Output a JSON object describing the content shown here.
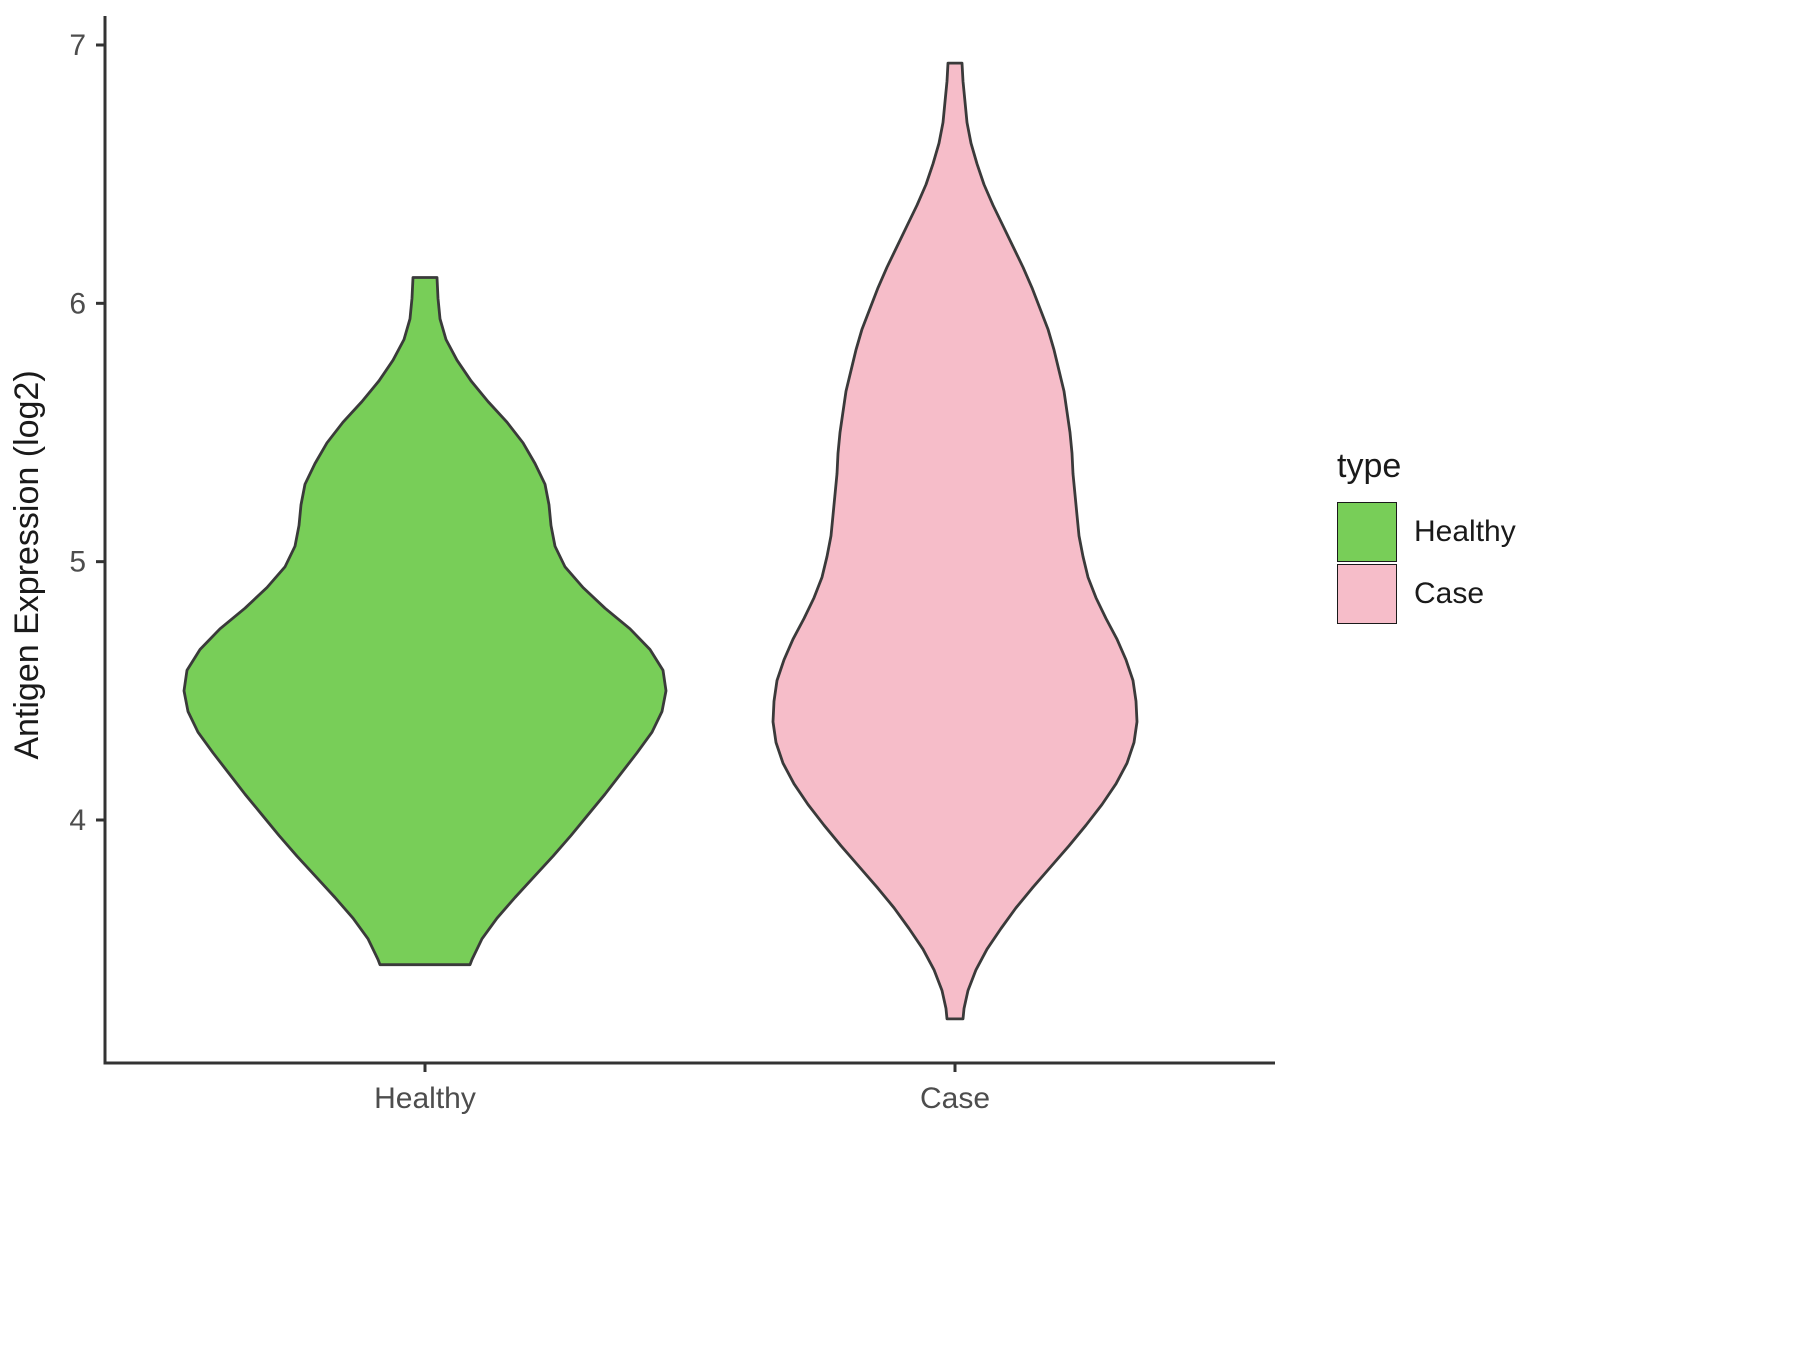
{
  "chart_data": {
    "type": "violin",
    "title": "",
    "ylabel": "Antigen Expression (log2)",
    "xlabel": "",
    "categories": [
      "Healthy",
      "Case"
    ],
    "yticks": [
      7,
      6,
      5,
      4
    ],
    "ylim": [
      3.06,
      7.1
    ],
    "grid": false,
    "legend_position": "right",
    "legend": {
      "title": "type",
      "entries": [
        {
          "label": "Healthy",
          "color": "#78CE58"
        },
        {
          "label": "Case",
          "color": "#F6BDC9"
        }
      ]
    },
    "outline_color": "#3A3A3A",
    "axis_color": "#333333",
    "tick_label_color": "#4d4d4d",
    "series": [
      {
        "name": "Healthy",
        "color": "#78CE58",
        "profile": [
          [
            6.1,
            12
          ],
          [
            6.02,
            13
          ],
          [
            5.94,
            15
          ],
          [
            5.86,
            21
          ],
          [
            5.78,
            32
          ],
          [
            5.7,
            46
          ],
          [
            5.62,
            63
          ],
          [
            5.54,
            82
          ],
          [
            5.46,
            98
          ],
          [
            5.38,
            110
          ],
          [
            5.3,
            120
          ],
          [
            5.22,
            124
          ],
          [
            5.14,
            126
          ],
          [
            5.06,
            130
          ],
          [
            4.98,
            140
          ],
          [
            4.9,
            158
          ],
          [
            4.82,
            180
          ],
          [
            4.74,
            205
          ],
          [
            4.66,
            225
          ],
          [
            4.58,
            238
          ],
          [
            4.5,
            241
          ],
          [
            4.42,
            237
          ],
          [
            4.34,
            227
          ],
          [
            4.26,
            212
          ],
          [
            4.18,
            196
          ],
          [
            4.1,
            180
          ],
          [
            4.02,
            163
          ],
          [
            3.94,
            146
          ],
          [
            3.86,
            128
          ],
          [
            3.78,
            109
          ],
          [
            3.7,
            90
          ],
          [
            3.62,
            72
          ],
          [
            3.54,
            57
          ],
          [
            3.46,
            47
          ],
          [
            3.44,
            45
          ]
        ]
      },
      {
        "name": "Case",
        "color": "#F6BDC9",
        "profile": [
          [
            6.93,
            7
          ],
          [
            6.86,
            8
          ],
          [
            6.78,
            10
          ],
          [
            6.7,
            12
          ],
          [
            6.62,
            16
          ],
          [
            6.54,
            22
          ],
          [
            6.46,
            29
          ],
          [
            6.38,
            38
          ],
          [
            6.3,
            48
          ],
          [
            6.22,
            58
          ],
          [
            6.14,
            68
          ],
          [
            6.06,
            77
          ],
          [
            5.98,
            85
          ],
          [
            5.9,
            93
          ],
          [
            5.82,
            99
          ],
          [
            5.74,
            104
          ],
          [
            5.66,
            109
          ],
          [
            5.58,
            112
          ],
          [
            5.5,
            115
          ],
          [
            5.42,
            117
          ],
          [
            5.34,
            118
          ],
          [
            5.26,
            120
          ],
          [
            5.18,
            122
          ],
          [
            5.1,
            124
          ],
          [
            5.02,
            128
          ],
          [
            4.94,
            133
          ],
          [
            4.86,
            141
          ],
          [
            4.78,
            151
          ],
          [
            4.7,
            162
          ],
          [
            4.62,
            171
          ],
          [
            4.54,
            178
          ],
          [
            4.46,
            181
          ],
          [
            4.38,
            182
          ],
          [
            4.3,
            179
          ],
          [
            4.22,
            172
          ],
          [
            4.14,
            161
          ],
          [
            4.06,
            147
          ],
          [
            3.98,
            131
          ],
          [
            3.9,
            114
          ],
          [
            3.82,
            96
          ],
          [
            3.74,
            78
          ],
          [
            3.66,
            61
          ],
          [
            3.58,
            46
          ],
          [
            3.5,
            32
          ],
          [
            3.42,
            21
          ],
          [
            3.34,
            13
          ],
          [
            3.27,
            9
          ],
          [
            3.23,
            8
          ]
        ]
      }
    ]
  }
}
